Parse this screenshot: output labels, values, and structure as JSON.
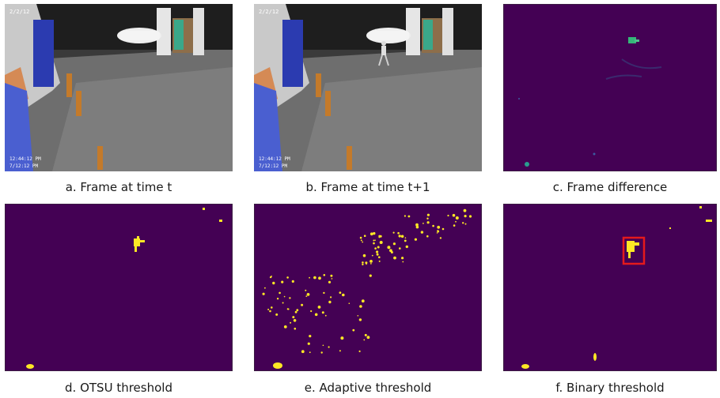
{
  "figure": {
    "panels": [
      {
        "id": "a",
        "caption": "a. Frame at time t",
        "stamp_top": "2/2/12",
        "stamp_bottom_1": "12:44:12 PM",
        "stamp_bottom_2": "7/12:12 PM"
      },
      {
        "id": "b",
        "caption": "b. Frame at time t+1",
        "stamp_top": "2/2/12",
        "stamp_bottom_1": "12:44:12 PM",
        "stamp_bottom_2": "7/12:12 PM"
      },
      {
        "id": "c",
        "caption": "c. Frame difference"
      },
      {
        "id": "d",
        "caption": "d. OTSU threshold"
      },
      {
        "id": "e",
        "caption": "e. Adaptive threshold"
      },
      {
        "id": "f",
        "caption": "f. Binary threshold"
      }
    ],
    "colors": {
      "mask_background": "#440154",
      "mask_foreground": "#fde725",
      "difference_highlight": "#35b779",
      "bounding_box": "#e41a1c"
    }
  }
}
